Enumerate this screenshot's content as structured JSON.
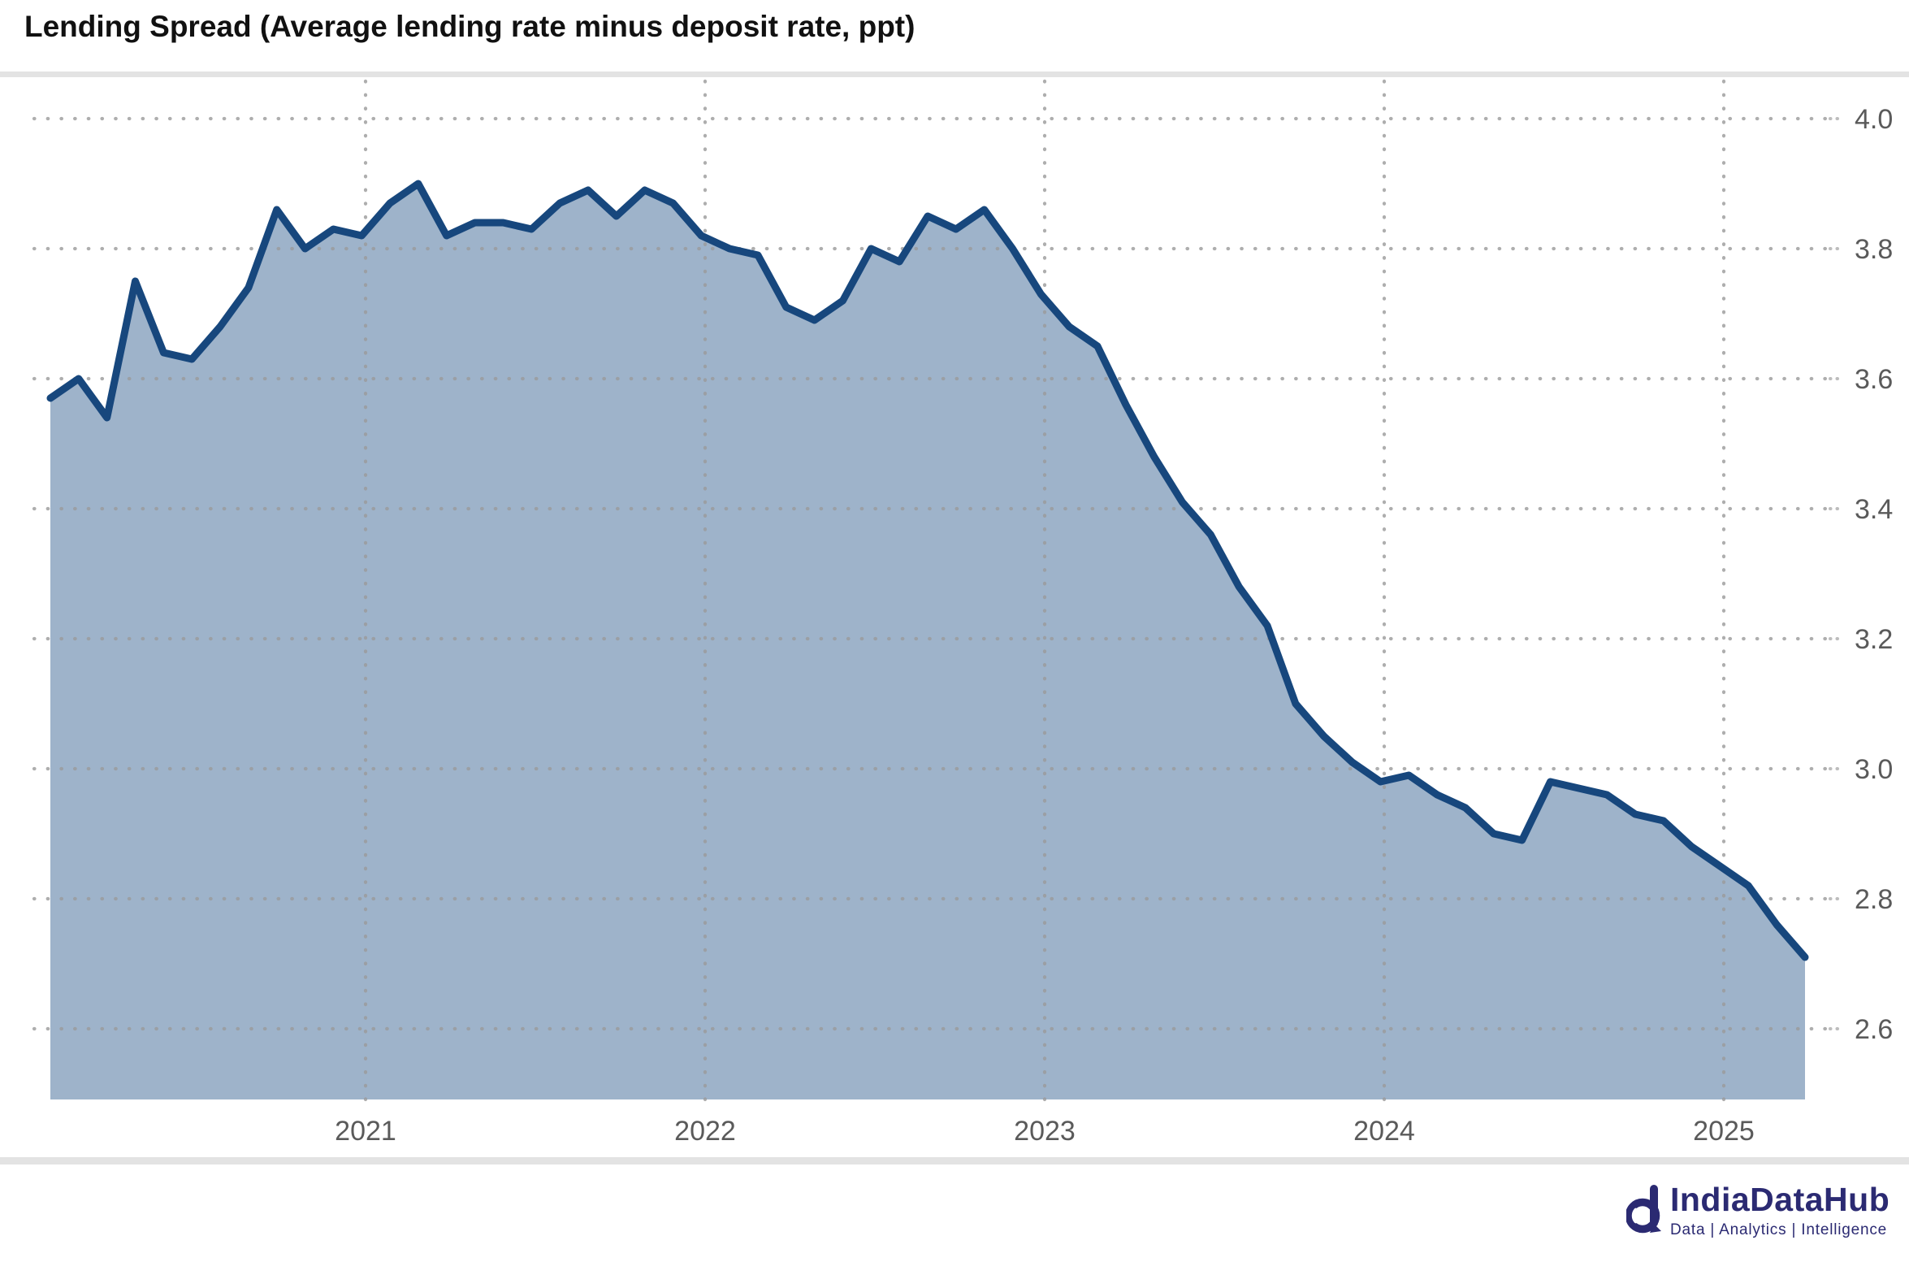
{
  "title": "Lending Spread (Average lending rate minus deposit rate, ppt)",
  "footer": {
    "brand": "IndiaDataHub",
    "tagline": "Data | Analytics | Intelligence"
  },
  "colors": {
    "line": "#17477d",
    "fill": "#9eb3ca",
    "grid": "#9a9a9a",
    "axis_text": "#5a5a5a",
    "tick_mark": "#bdbdbd",
    "title_text": "#111111",
    "brand_navy": "#2b2a72",
    "divider": "#e3e3e3"
  },
  "chart_data": {
    "type": "area",
    "title": "Lending Spread (Average lending rate minus deposit rate, ppt)",
    "xlabel": "",
    "ylabel": "ppt",
    "x_unit": "month",
    "grid": "dotted",
    "legend": "none",
    "ylim": [
      2.49,
      4.07
    ],
    "y_ticks": [
      4.0,
      3.8,
      3.6,
      3.4,
      3.2,
      3.0,
      2.8,
      2.6
    ],
    "x_ticks": [
      "2021",
      "2022",
      "2023",
      "2024",
      "2025"
    ],
    "x": [
      "2020-02",
      "2020-03",
      "2020-04",
      "2020-05",
      "2020-06",
      "2020-07",
      "2020-08",
      "2020-09",
      "2020-10",
      "2020-11",
      "2020-12",
      "2021-01",
      "2021-02",
      "2021-03",
      "2021-04",
      "2021-05",
      "2021-06",
      "2021-07",
      "2021-08",
      "2021-09",
      "2021-10",
      "2021-11",
      "2021-12",
      "2022-01",
      "2022-02",
      "2022-03",
      "2022-04",
      "2022-05",
      "2022-06",
      "2022-07",
      "2022-08",
      "2022-09",
      "2022-10",
      "2022-11",
      "2022-12",
      "2023-01",
      "2023-02",
      "2023-03",
      "2023-04",
      "2023-05",
      "2023-06",
      "2023-07",
      "2023-08",
      "2023-09",
      "2023-10",
      "2023-11",
      "2023-12",
      "2024-01",
      "2024-02",
      "2024-03",
      "2024-04",
      "2024-05",
      "2024-06",
      "2024-07",
      "2024-08",
      "2024-09",
      "2024-10",
      "2024-11",
      "2024-12",
      "2025-01",
      "2025-02",
      "2025-03",
      "2025-04"
    ],
    "values": [
      3.57,
      3.6,
      3.54,
      3.75,
      3.64,
      3.63,
      3.68,
      3.74,
      3.86,
      3.8,
      3.83,
      3.82,
      3.87,
      3.9,
      3.82,
      3.84,
      3.84,
      3.83,
      3.87,
      3.89,
      3.85,
      3.89,
      3.87,
      3.82,
      3.8,
      3.79,
      3.71,
      3.69,
      3.72,
      3.8,
      3.78,
      3.85,
      3.83,
      3.86,
      3.8,
      3.73,
      3.68,
      3.65,
      3.56,
      3.48,
      3.41,
      3.36,
      3.28,
      3.22,
      3.1,
      3.05,
      3.01,
      2.98,
      2.99,
      2.96,
      2.94,
      2.9,
      2.89,
      2.98,
      2.97,
      2.96,
      2.93,
      2.92,
      2.88,
      2.85,
      2.82,
      2.76,
      2.71
    ]
  }
}
